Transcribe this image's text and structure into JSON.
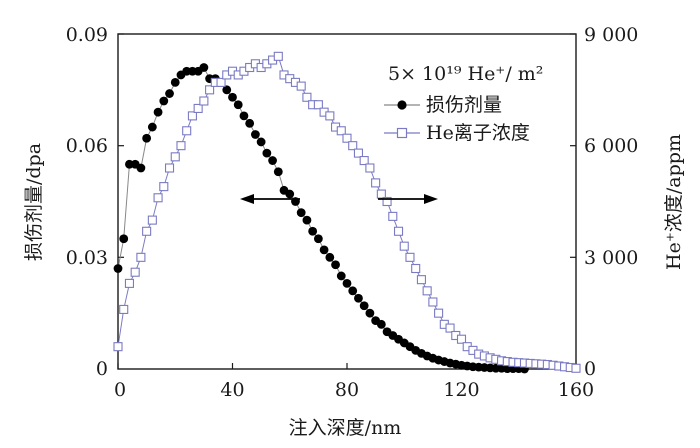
{
  "chart_data": {
    "type": "scatter",
    "title": "",
    "xlabel": "注入深度/nm",
    "ylabel_left": "损伤剂量/dpa",
    "ylabel_right": "He⁺浓度/appm",
    "xlim": [
      0,
      160
    ],
    "ylim_left": [
      0,
      0.09
    ],
    "ylim_right": [
      0,
      9000
    ],
    "xticks": [
      "0",
      "40",
      "80",
      "120",
      "160"
    ],
    "yticks_left": [
      "0",
      "0.03",
      "0.06",
      "0.09"
    ],
    "yticks_right": [
      "0",
      "3 000",
      "6 000",
      "9 000"
    ],
    "annotation": "5× 10¹⁹ He⁺/ m²",
    "legend_position": "top-right",
    "arrow_left_target": "left axis",
    "arrow_right_target": "right axis",
    "series": [
      {
        "name": "损伤剂量",
        "axis": "left",
        "marker": "filled-circle",
        "color": "#000000",
        "line_color": "#888888",
        "x": [
          0,
          2,
          4,
          6,
          8,
          10,
          12,
          14,
          16,
          18,
          20,
          22,
          24,
          26,
          28,
          30,
          32,
          34,
          36,
          38,
          40,
          42,
          44,
          46,
          48,
          50,
          52,
          54,
          56,
          58,
          60,
          62,
          64,
          66,
          68,
          70,
          72,
          74,
          76,
          78,
          80,
          82,
          84,
          86,
          88,
          90,
          92,
          94,
          96,
          98,
          100,
          102,
          104,
          106,
          108,
          110,
          112,
          114,
          116,
          118,
          120,
          122,
          124,
          126,
          128,
          130,
          132,
          134,
          136,
          138,
          140,
          142
        ],
        "y": [
          0.027,
          0.035,
          0.055,
          0.055,
          0.054,
          0.062,
          0.065,
          0.069,
          0.072,
          0.074,
          0.077,
          0.079,
          0.08,
          0.08,
          0.08,
          0.081,
          0.078,
          0.078,
          0.077,
          0.075,
          0.073,
          0.071,
          0.068,
          0.066,
          0.063,
          0.061,
          0.058,
          0.056,
          0.053,
          0.048,
          0.047,
          0.045,
          0.042,
          0.04,
          0.037,
          0.035,
          0.032,
          0.03,
          0.028,
          0.025,
          0.023,
          0.021,
          0.019,
          0.017,
          0.015,
          0.013,
          0.012,
          0.01,
          0.009,
          0.008,
          0.007,
          0.006,
          0.005,
          0.0042,
          0.0035,
          0.0029,
          0.0024,
          0.002,
          0.0016,
          0.0013,
          0.001,
          0.0008,
          0.0006,
          0.0005,
          0.0004,
          0.0003,
          0.0002,
          0.0002,
          0.0001,
          0.0001,
          0.0001,
          0.0
        ]
      },
      {
        "name": "He离子浓度",
        "axis": "right",
        "marker": "open-square",
        "color": "#7b7bc4",
        "line_color": "#7b7bc4",
        "x": [
          0,
          2,
          4,
          6,
          8,
          10,
          12,
          14,
          16,
          18,
          20,
          22,
          24,
          26,
          28,
          30,
          32,
          34,
          36,
          38,
          40,
          42,
          44,
          46,
          48,
          50,
          52,
          54,
          56,
          58,
          60,
          62,
          64,
          66,
          68,
          70,
          72,
          74,
          76,
          78,
          80,
          82,
          84,
          86,
          88,
          90,
          92,
          94,
          96,
          98,
          100,
          102,
          104,
          106,
          108,
          110,
          112,
          114,
          116,
          118,
          120,
          122,
          124,
          126,
          128,
          130,
          132,
          134,
          136,
          138,
          140,
          142,
          144,
          146,
          148,
          150,
          152,
          154,
          156,
          158,
          160
        ],
        "y": [
          600,
          1600,
          2300,
          2600,
          3000,
          3700,
          4000,
          4600,
          4900,
          5400,
          5700,
          6000,
          6400,
          6800,
          7000,
          7200,
          7500,
          7700,
          7700,
          7900,
          8000,
          7900,
          8000,
          8100,
          8200,
          8100,
          8200,
          8300,
          8400,
          7900,
          7800,
          7700,
          7600,
          7300,
          7100,
          7100,
          6900,
          6800,
          6500,
          6400,
          6200,
          6000,
          5800,
          5600,
          5400,
          5000,
          4700,
          4500,
          4100,
          3700,
          3300,
          3000,
          2700,
          2400,
          2100,
          1800,
          1500,
          1200,
          1100,
          900,
          800,
          600,
          500,
          400,
          350,
          300,
          260,
          220,
          200,
          180,
          170,
          160,
          150,
          140,
          130,
          120,
          100,
          80,
          60,
          40,
          20
        ]
      }
    ]
  }
}
